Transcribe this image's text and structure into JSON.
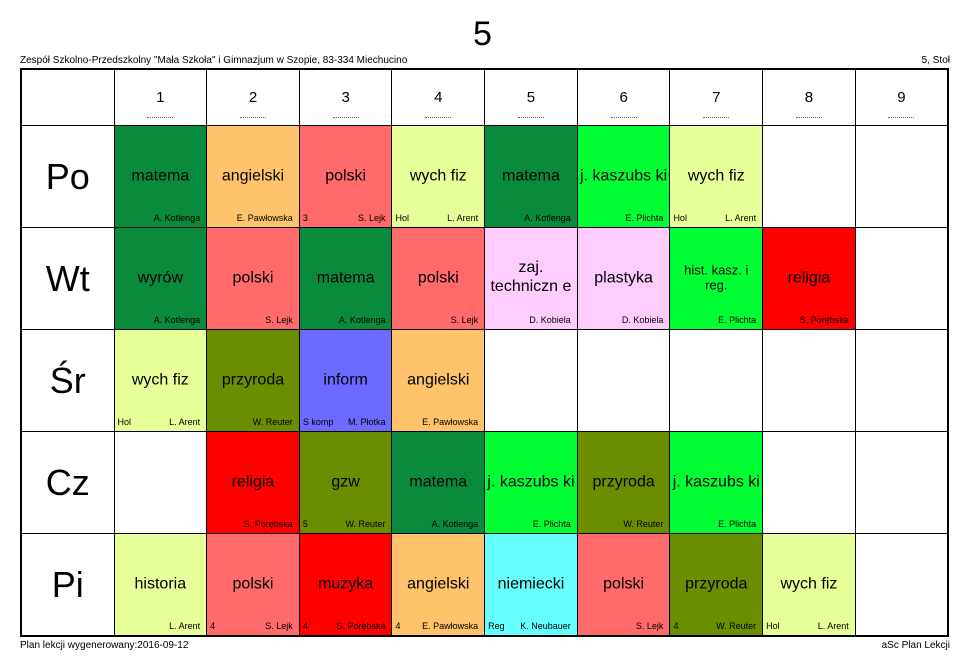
{
  "title": "5",
  "school": "Zespół Szkolno-Przedszkolny \"Mała Szkoła\" i Gimnazjum w Szopie, 83-334 Miechucino",
  "class_label": "5, Stoł",
  "footer": {
    "generated": "Plan lekcji wygenerowany:2016-09-12",
    "app": "aSc Plan Lekcji"
  },
  "periods": [
    "1",
    "2",
    "3",
    "4",
    "5",
    "6",
    "7",
    "8",
    "9"
  ],
  "days": [
    {
      "label": "Po",
      "cells": [
        {
          "subject": "matema",
          "teacher": "A. Kotlenga",
          "room": "",
          "color": "#0a8a3c"
        },
        {
          "subject": "angielski",
          "teacher": "E. Pawłowska",
          "room": "",
          "color": "#ffc46b"
        },
        {
          "subject": "polski",
          "teacher": "S. Lejk",
          "room": "3",
          "color": "#ff6b6b"
        },
        {
          "subject": "wych fiz",
          "teacher": "L. Arent",
          "room": "Hol",
          "color": "#e6ff99"
        },
        {
          "subject": "matema",
          "teacher": "A. Kotlenga",
          "room": "",
          "color": "#0a8a3c"
        },
        {
          "subject": "j. kaszubs ki",
          "teacher": "E. Plichta",
          "room": "",
          "color": "#00ff33"
        },
        {
          "subject": "wych fiz",
          "teacher": "L. Arent",
          "room": "Hol",
          "color": "#e6ff99"
        },
        null,
        null
      ]
    },
    {
      "label": "Wt",
      "cells": [
        {
          "subject": "wyrów",
          "teacher": "A. Kotlenga",
          "room": "",
          "color": "#0a8a3c"
        },
        {
          "subject": "polski",
          "teacher": "S. Lejk",
          "room": "",
          "color": "#ff6b6b"
        },
        {
          "subject": "matema",
          "teacher": "A. Kotlenga",
          "room": "",
          "color": "#0a8a3c"
        },
        {
          "subject": "polski",
          "teacher": "S. Lejk",
          "room": "",
          "color": "#ff6b6b"
        },
        {
          "subject": "zaj. techniczn e",
          "teacher": "D. Kobiela",
          "room": "",
          "color": "#ffccff"
        },
        {
          "subject": "plastyka",
          "teacher": "D. Kobiela",
          "room": "",
          "color": "#ffccff"
        },
        {
          "subject": "hist. kasz. i reg.",
          "teacher": "E. Plichta",
          "room": "",
          "color": "#00ff33",
          "small": true
        },
        {
          "subject": "religia",
          "teacher": "S. Porębska",
          "room": "",
          "color": "#ff0000"
        },
        null
      ]
    },
    {
      "label": "Śr",
      "cells": [
        {
          "subject": "wych fiz",
          "teacher": "L. Arent",
          "room": "Hol",
          "color": "#e6ff99"
        },
        {
          "subject": "przyroda",
          "teacher": "W. Reuter",
          "room": "",
          "color": "#6b8e00"
        },
        {
          "subject": "inform",
          "teacher": "M. Płotka",
          "room": "S komp",
          "color": "#6b6bff"
        },
        {
          "subject": "angielski",
          "teacher": "E. Pawłowska",
          "room": "",
          "color": "#ffc46b"
        },
        null,
        null,
        null,
        null,
        null
      ]
    },
    {
      "label": "Cz",
      "cells": [
        null,
        {
          "subject": "religia",
          "teacher": "S. Porębska",
          "room": "",
          "color": "#ff0000"
        },
        {
          "subject": "gzw",
          "teacher": "W. Reuter",
          "room": "5",
          "color": "#6b8e00"
        },
        {
          "subject": "matema",
          "teacher": "A. Kotlenga",
          "room": "",
          "color": "#0a8a3c"
        },
        {
          "subject": "j. kaszubs ki",
          "teacher": "E. Plichta",
          "room": "",
          "color": "#00ff33"
        },
        {
          "subject": "przyroda",
          "teacher": "W. Reuter",
          "room": "",
          "color": "#6b8e00"
        },
        {
          "subject": "j. kaszubs ki",
          "teacher": "E. Plichta",
          "room": "",
          "color": "#00ff33"
        },
        null,
        null
      ]
    },
    {
      "label": "Pi",
      "cells": [
        {
          "subject": "historia",
          "teacher": "L. Arent",
          "room": "",
          "color": "#e6ff99"
        },
        {
          "subject": "polski",
          "teacher": "S. Lejk",
          "room": "4",
          "color": "#ff6b6b"
        },
        {
          "subject": "muzyka",
          "teacher": "S. Porębska",
          "room": "4",
          "color": "#ff0000"
        },
        {
          "subject": "angielski",
          "teacher": "E. Pawłowska",
          "room": "4",
          "color": "#ffc46b"
        },
        {
          "subject": "niemiecki",
          "teacher": "K. Neubauer",
          "room": "Reg",
          "color": "#66ffff"
        },
        {
          "subject": "polski",
          "teacher": "S. Lejk",
          "room": "",
          "color": "#ff6b6b"
        },
        {
          "subject": "przyroda",
          "teacher": "W. Reuter",
          "room": "4",
          "color": "#6b8e00"
        },
        {
          "subject": "wych fiz",
          "teacher": "L. Arent",
          "room": "Hol",
          "color": "#e6ff99"
        },
        null
      ]
    }
  ]
}
